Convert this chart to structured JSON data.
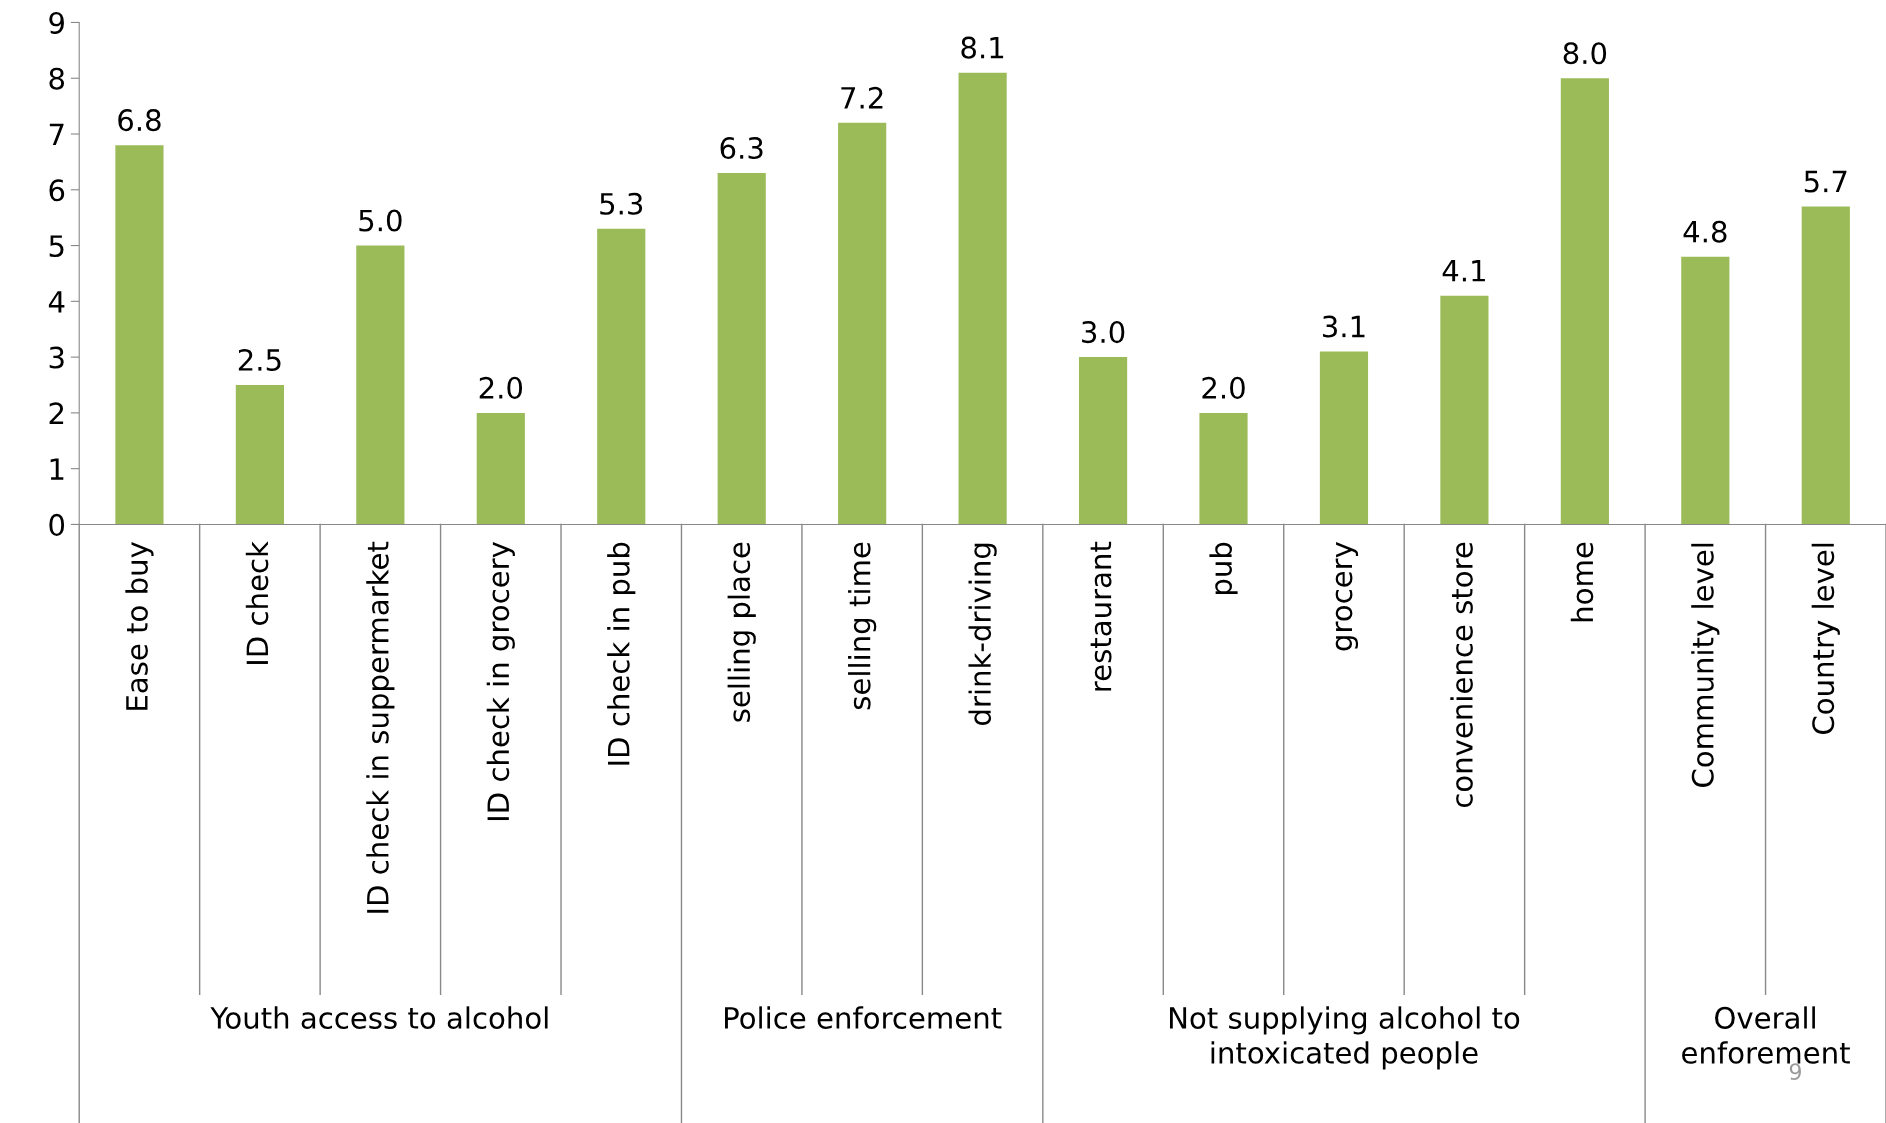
{
  "chart_data": {
    "type": "bar",
    "categories": [
      "Ease to buy",
      "ID check",
      "ID check in suppermarket",
      "ID check in grocery",
      "ID check in pub",
      "selling place",
      "selling time",
      "drink-driving",
      "restaurant",
      "pub",
      "grocery",
      "convenience store",
      "home",
      "Community level",
      "Country level"
    ],
    "values": [
      6.8,
      2.5,
      5.0,
      2.0,
      5.3,
      6.3,
      7.2,
      8.1,
      3.0,
      2.0,
      3.1,
      4.1,
      8.0,
      4.8,
      5.7
    ],
    "value_labels": [
      "6.8",
      "2.5",
      "5.0",
      "2.0",
      "5.3",
      "6.3",
      "7.2",
      "8.1",
      "3.0",
      "2.0",
      "3.1",
      "4.1",
      "8.0",
      "4.8",
      "5.7"
    ],
    "color": "#9bbb59",
    "ylim": [
      0,
      9
    ],
    "yticks": [
      0,
      1,
      2,
      3,
      4,
      5,
      6,
      7,
      8,
      9
    ],
    "grid": false,
    "annotations": [
      "Youth access to alcohol",
      "Police enforcement",
      "Not supplying alcohol to\nintoxicated people",
      "Overall\nenforement",
      "9"
    ]
  }
}
